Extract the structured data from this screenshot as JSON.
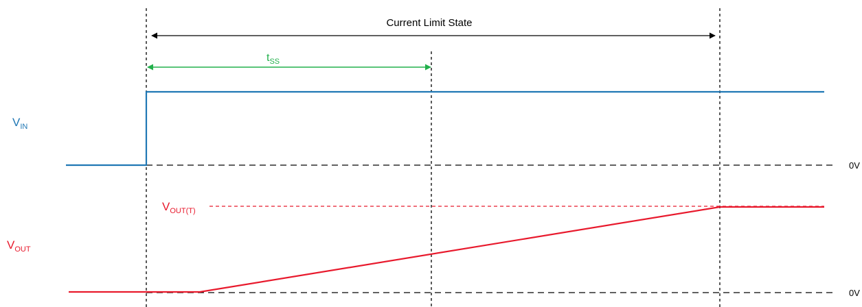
{
  "colors": {
    "vin": "#1f77b4",
    "vout": "#e8192c",
    "tss": "#22b04b",
    "dim": "#000000",
    "ground": "#000000"
  },
  "labels": {
    "current_limit_state": "Current Limit State",
    "tss_main": "t",
    "tss_sub": "SS",
    "vin_main": "V",
    "vin_sub": "IN",
    "vout_main": "V",
    "vout_sub": "OUT",
    "vout_t_main": "V",
    "vout_t_sub": "OUT(T)",
    "zero_v_top": "0V",
    "zero_v_bottom": "0V"
  }
}
